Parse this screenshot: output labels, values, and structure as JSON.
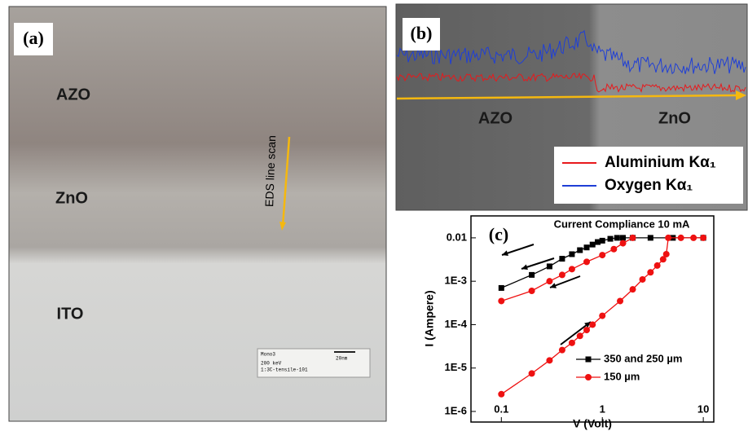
{
  "panel_a": {
    "label": "(a)",
    "layers": [
      "AZO",
      "ZnO",
      "ITO"
    ],
    "scan_label": "EDS line scan",
    "scale_box": [
      "Mono3",
      "20nm",
      "200 keV",
      "1:3C-tensile-101"
    ]
  },
  "panel_b": {
    "label": "(b)",
    "regions": [
      "AZO",
      "ZnO"
    ],
    "legend": [
      {
        "name": "Aluminium Kα₁",
        "color": "#e8191c"
      },
      {
        "name": "Oxygen Kα₁",
        "color": "#1f3fd6"
      }
    ]
  },
  "chart_data": {
    "type": "line",
    "label": "(c)",
    "annotation": "Current Compliance 10 mA",
    "x_label": "V (Volt)",
    "y_label": "I (Ampere)",
    "xlog": true,
    "ylog": true,
    "xlim": [
      0.05,
      12.7
    ],
    "ylim": [
      5.7e-07,
      0.032
    ],
    "xticks": [
      0.1,
      1,
      10
    ],
    "yticks": [
      {
        "value": 1e-06,
        "label": "1E-6"
      },
      {
        "value": 1e-05,
        "label": "1E-5"
      },
      {
        "value": 0.0001,
        "label": "1E-4"
      },
      {
        "value": 0.001,
        "label": "1E-3"
      },
      0.01
    ],
    "series": [
      {
        "name": "350 and 250 µm",
        "color": "#000000",
        "marker": "square",
        "x": [
          0.1,
          0.2,
          0.3,
          0.4,
          0.5,
          0.6,
          0.7,
          0.8,
          0.9,
          1.0,
          1.2,
          1.4,
          1.6,
          2,
          3,
          5,
          10
        ],
        "values": [
          0.0007,
          0.0014,
          0.0022,
          0.0033,
          0.0042,
          0.0052,
          0.006,
          0.007,
          0.008,
          0.0086,
          0.0095,
          0.01,
          0.01,
          0.01,
          0.01,
          0.01,
          0.01
        ]
      },
      {
        "name": "150 µm",
        "color": "#ee1111",
        "marker": "circle",
        "x": [
          0.1,
          0.2,
          0.3,
          0.4,
          0.5,
          0.6,
          0.7,
          0.8,
          1.0,
          1.5,
          2,
          2.5,
          3,
          3.5,
          4,
          4.3,
          4.5,
          6,
          8,
          10,
          null,
          0.1,
          0.2,
          0.3,
          0.4,
          0.5,
          0.7,
          1.0,
          1.3,
          1.6,
          2
        ],
        "values": [
          2.5e-06,
          7.5e-06,
          1.5e-05,
          2.6e-05,
          3.8e-05,
          5.5e-05,
          7.5e-05,
          0.0001,
          0.00016,
          0.00035,
          0.00065,
          0.0011,
          0.0016,
          0.0023,
          0.0032,
          0.0042,
          0.01,
          0.01,
          0.01,
          0.01,
          null,
          0.00035,
          0.0006,
          0.001,
          0.0014,
          0.0019,
          0.0028,
          0.004,
          0.0055,
          0.0075,
          0.01
        ]
      }
    ]
  }
}
